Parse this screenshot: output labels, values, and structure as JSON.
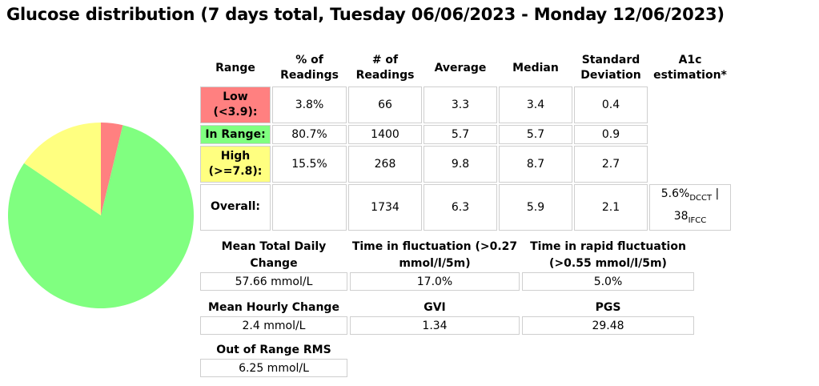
{
  "title": "Glucose distribution (7 days total, Tuesday 06/06/2023 - Monday 12/06/2023)",
  "chart_data": {
    "type": "pie",
    "slices": [
      {
        "label": "Low (<3.9):",
        "value": 3.8,
        "color": "#ff8080"
      },
      {
        "label": "In Range:",
        "value": 80.7,
        "color": "#80ff80"
      },
      {
        "label": "High (>=7.8):",
        "value": 15.5,
        "color": "#ffff80"
      }
    ]
  },
  "table": {
    "headers": {
      "range": "Range",
      "pct": "% of Readings",
      "num": "# of Readings",
      "avg": "Average",
      "median": "Median",
      "sd": "Standard Deviation",
      "a1c": "A1c estimation*"
    },
    "rows": [
      {
        "label": "Low (<3.9):",
        "pct": "3.8%",
        "num": "66",
        "avg": "3.3",
        "median": "3.4",
        "sd": "0.4"
      },
      {
        "label": "In Range:",
        "pct": "80.7%",
        "num": "1400",
        "avg": "5.7",
        "median": "5.7",
        "sd": "0.9"
      },
      {
        "label": "High (>=7.8):",
        "pct": "15.5%",
        "num": "268",
        "avg": "9.8",
        "median": "8.7",
        "sd": "2.7"
      },
      {
        "label": "Overall:",
        "pct": "",
        "num": "1734",
        "avg": "6.3",
        "median": "5.9",
        "sd": "2.1"
      }
    ],
    "a1c": {
      "dcct_value": "5.6%",
      "dcct_sub": "DCCT",
      "sep": " | ",
      "ifcc_value": "38",
      "ifcc_sub": "IFCC"
    }
  },
  "metrics": {
    "mtdc": {
      "label": "Mean Total Daily Change",
      "value": "57.66 mmol/L"
    },
    "fluct": {
      "label": "Time in fluctuation (>0.27 mmol/l/5m)",
      "value": "17.0%"
    },
    "rapid": {
      "label": "Time in rapid fluctuation (>0.55 mmol/l/5m)",
      "value": "5.0%"
    },
    "mhc": {
      "label": "Mean Hourly Change",
      "value": "2.4 mmol/L"
    },
    "gvi": {
      "label": "GVI",
      "value": "1.34"
    },
    "pgs": {
      "label": "PGS",
      "value": "29.48"
    },
    "rms": {
      "label": "Out of Range RMS",
      "value": "6.25 mmol/L"
    }
  }
}
